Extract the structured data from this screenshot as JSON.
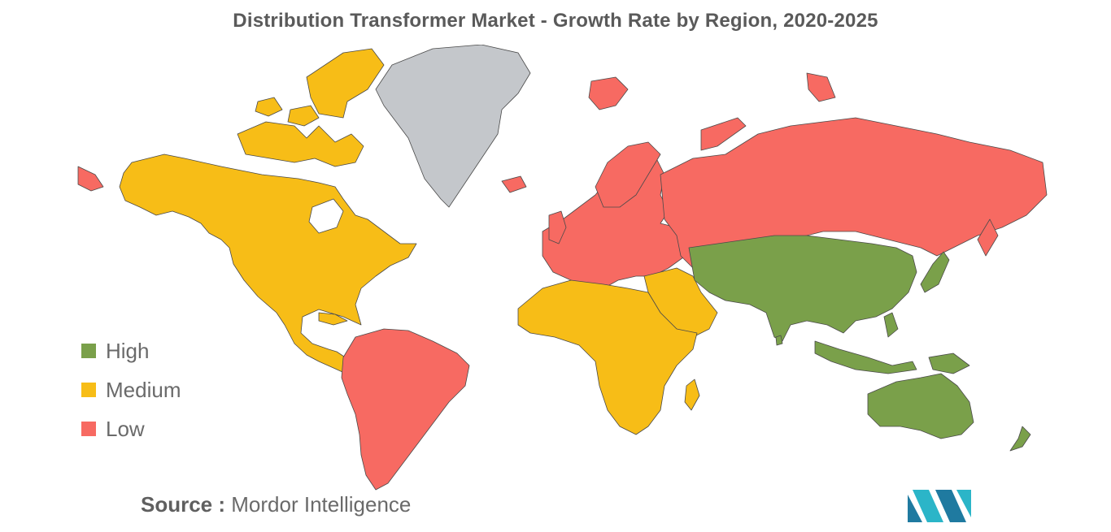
{
  "title": "Distribution Transformer Market - Growth Rate by Region, 2020-2025",
  "legend": [
    {
      "label": "High",
      "color": "#7aa04a"
    },
    {
      "label": "Medium",
      "color": "#f7bd17"
    },
    {
      "label": "Low",
      "color": "#f76a62"
    }
  ],
  "no_data_color": "#c4c7cb",
  "source": {
    "prefix": "Source :",
    "name": "Mordor Intelligence"
  },
  "regions": [
    {
      "name": "North America",
      "level": "Medium"
    },
    {
      "name": "Greenland",
      "level": "No data"
    },
    {
      "name": "South America",
      "level": "Low"
    },
    {
      "name": "Europe",
      "level": "Low"
    },
    {
      "name": "Russia",
      "level": "Low"
    },
    {
      "name": "Africa",
      "level": "Medium"
    },
    {
      "name": "Middle East",
      "level": "Medium"
    },
    {
      "name": "Asia-Pacific",
      "level": "High"
    },
    {
      "name": "Australia",
      "level": "High"
    }
  ]
}
